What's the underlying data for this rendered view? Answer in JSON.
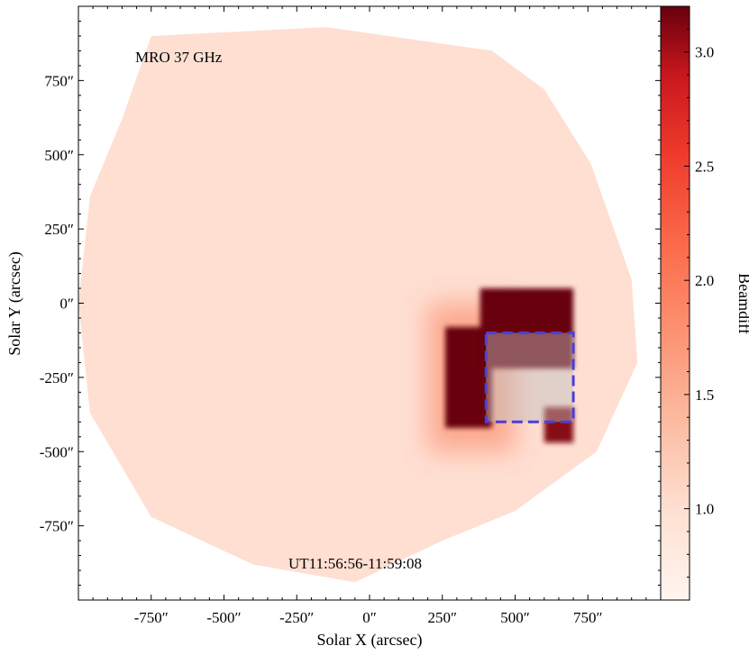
{
  "chart_data": {
    "type": "heatmap",
    "annotations": {
      "instrument": "MRO 37 GHz",
      "time_range": "UT11:56:56-11:59:08"
    },
    "xlabel": "Solar X (arcsec)",
    "ylabel": "Solar Y (arcsec)",
    "xlim": [
      -1000,
      1000
    ],
    "ylim": [
      -1000,
      1000
    ],
    "x_ticks": [
      -750,
      -500,
      -250,
      0,
      250,
      500,
      750
    ],
    "y_ticks": [
      -750,
      -500,
      -250,
      0,
      250,
      500,
      750
    ],
    "x_tick_labels": [
      "-750″",
      "-500″",
      "-250″",
      "0″",
      "250″",
      "500″",
      "750″"
    ],
    "y_tick_labels": [
      "-750″",
      "-500″",
      "-250″",
      "0″",
      "250″",
      "500″",
      "750″"
    ],
    "colorbar": {
      "label": "Beamdiff",
      "range": [
        0.6,
        3.2
      ],
      "ticks": [
        1.0,
        1.5,
        2.0,
        2.5,
        3.0
      ],
      "tick_labels": [
        "1.0",
        "1.5",
        "2.0",
        "2.5",
        "3.0"
      ],
      "colormap": "Reds",
      "colors": [
        "#fff5f0",
        "#fcbba1",
        "#fb6a4a",
        "#cb181d",
        "#67000d"
      ]
    },
    "disk": {
      "background_value": 0.85,
      "outline": [
        [
          -750,
          900
        ],
        [
          -150,
          930
        ],
        [
          420,
          850
        ],
        [
          600,
          720
        ],
        [
          760,
          470
        ],
        [
          900,
          80
        ],
        [
          920,
          -200
        ],
        [
          780,
          -500
        ],
        [
          500,
          -700
        ],
        [
          250,
          -800
        ],
        [
          -50,
          -940
        ],
        [
          -400,
          -880
        ],
        [
          -750,
          -720
        ],
        [
          -960,
          -370
        ],
        [
          -1000,
          0
        ],
        [
          -960,
          360
        ],
        [
          -850,
          620
        ]
      ]
    },
    "regions": [
      {
        "name": "active-region-west-lobe",
        "x": [
          260,
          420
        ],
        "y": [
          -420,
          -80
        ],
        "value": 3.2
      },
      {
        "name": "active-region-north-lobe",
        "x": [
          380,
          700
        ],
        "y": [
          -220,
          50
        ],
        "value": 3.2
      },
      {
        "name": "active-region-southeast-tail",
        "x": [
          600,
          700
        ],
        "y": [
          -470,
          -350
        ],
        "value": 3.0
      },
      {
        "name": "halo-west",
        "x": [
          200,
          500
        ],
        "y": [
          -500,
          0
        ],
        "value": 1.5
      }
    ],
    "selection_box": {
      "x": [
        400,
        700
      ],
      "y": [
        -400,
        -100
      ],
      "color": "#4b3fd6",
      "style": "dashed"
    }
  }
}
